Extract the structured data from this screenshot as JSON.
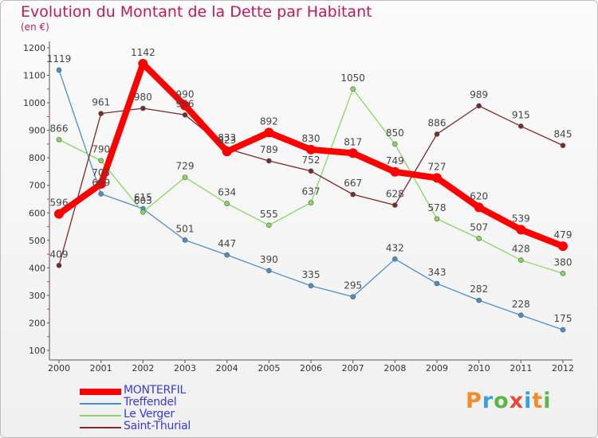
{
  "title": "Evolution du Montant de la Dette par Habitant",
  "subtitle": "(en €)",
  "logo": {
    "letters": [
      "P",
      "r",
      "o",
      "x",
      "i",
      "t",
      "i"
    ],
    "colors": [
      "#f28c28",
      "#3aa0dc",
      "#58b848",
      "#e84a3a",
      "#3aa0dc",
      "#f28c28",
      "#58b848"
    ]
  },
  "chart_data": {
    "type": "line",
    "x": [
      "2000",
      "2001",
      "2002",
      "2003",
      "2004",
      "2005",
      "2006",
      "2007",
      "2008",
      "2009",
      "2010",
      "2011",
      "2012"
    ],
    "ylim": [
      100,
      1200
    ],
    "yticks": [
      "100",
      "200",
      "300",
      "400",
      "500",
      "600",
      "700",
      "800",
      "900",
      "1000",
      "1100",
      "1200"
    ],
    "grid": false,
    "legend_position": "bottom-left",
    "series": [
      {
        "name": "MONTERFIL",
        "color": "#ff0000",
        "values": [
          596,
          705,
          1142,
          990,
          823,
          892,
          830,
          817,
          749,
          727,
          620,
          539,
          479
        ],
        "labels": [
          "596",
          "705",
          "1142",
          "990",
          "823",
          "892",
          "830",
          "817",
          "749",
          "727",
          "620",
          "539",
          "479"
        ]
      },
      {
        "name": "Treffendel",
        "color": "#4a90c8",
        "values": [
          1119,
          669,
          615,
          501,
          447,
          390,
          335,
          295,
          432,
          343,
          282,
          228,
          175
        ],
        "labels": [
          "1119",
          "669",
          "615",
          "501",
          "447",
          "390",
          "335",
          "295",
          "432",
          "343",
          "282",
          "228",
          "175"
        ]
      },
      {
        "name": "Le Verger",
        "color": "#88d860",
        "values": [
          866,
          790,
          603,
          729,
          634,
          555,
          637,
          1050,
          850,
          578,
          507,
          428,
          380
        ],
        "labels": [
          "866",
          "790",
          "603",
          "729",
          "634",
          "555",
          "637",
          "1050",
          "850",
          "578",
          "507",
          "428",
          "380"
        ]
      },
      {
        "name": "Saint-Thurial",
        "color": "#7a2a2a",
        "values": [
          409,
          961,
          980,
          956,
          833,
          789,
          752,
          667,
          628,
          886,
          989,
          915,
          845
        ],
        "labels": [
          "409",
          "961",
          "980",
          "956",
          "833",
          "789",
          "752",
          "667",
          "628",
          "886",
          "989",
          "915",
          "845"
        ]
      }
    ]
  }
}
